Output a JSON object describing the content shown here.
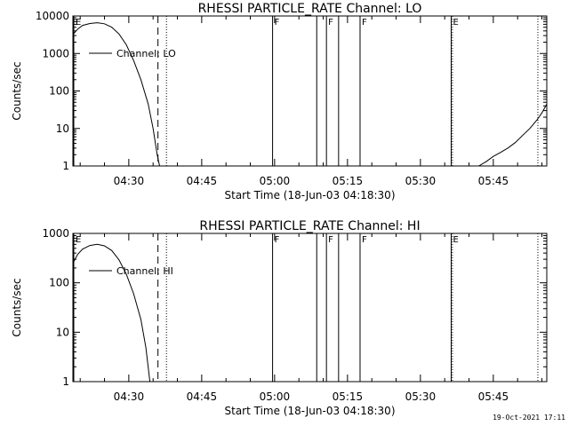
{
  "footer": {
    "timestamp": "19-Oct-2021 17:11"
  },
  "chart_data": [
    {
      "type": "line",
      "title": "RHESSI PARTICLE_RATE Channel: LO",
      "xlabel": "Start Time (18-Jun-03 04:18:30)",
      "ylabel": "Counts/sec",
      "yscale": "log",
      "xlim": [
        "04:18:30",
        "05:56:00"
      ],
      "ylim": [
        1,
        10000
      ],
      "xticks": [
        "04:30",
        "04:45",
        "05:00",
        "05:15",
        "05:30",
        "05:45"
      ],
      "yticks": [
        "1",
        "10",
        "100",
        "1000",
        "10000"
      ],
      "legend": {
        "entry": "Channel: LO",
        "placement": "top-left"
      },
      "series": [
        {
          "name": "Channel: LO",
          "points": [
            [
              "04:18:30",
              3200
            ],
            [
              "04:19:30",
              4500
            ],
            [
              "04:20:30",
              5600
            ],
            [
              "04:22:00",
              6300
            ],
            [
              "04:23:30",
              6600
            ],
            [
              "04:25:00",
              6200
            ],
            [
              "04:26:30",
              5000
            ],
            [
              "04:28:00",
              3300
            ],
            [
              "04:29:30",
              1700
            ],
            [
              "04:31:00",
              650
            ],
            [
              "04:32:30",
              200
            ],
            [
              "04:34:00",
              45
            ],
            [
              "04:35:00",
              10
            ],
            [
              "04:35:50",
              2
            ],
            [
              "04:36:20",
              1
            ]
          ]
        },
        {
          "name": "Channel: LO",
          "points": [
            [
              "05:42:00",
              1
            ],
            [
              "05:43:30",
              1.3
            ],
            [
              "05:45:00",
              1.8
            ],
            [
              "05:46:30",
              2.3
            ],
            [
              "05:48:00",
              3
            ],
            [
              "05:49:30",
              4.2
            ],
            [
              "05:51:00",
              6.5
            ],
            [
              "05:52:30",
              10
            ],
            [
              "05:54:00",
              17
            ],
            [
              "05:55:00",
              26
            ],
            [
              "05:56:00",
              45
            ]
          ]
        }
      ],
      "markers": [
        {
          "label": "E",
          "time": "04:18:30",
          "style": "solid"
        },
        {
          "label": "",
          "time": "04:36:00",
          "style": "dashed"
        },
        {
          "label": "",
          "time": "04:37:45",
          "style": "dotted"
        },
        {
          "label": "F",
          "time": "04:59:35",
          "style": "solid"
        },
        {
          "label": "",
          "time": "05:08:40",
          "style": "solid"
        },
        {
          "label": "F",
          "time": "05:10:40",
          "style": "solid"
        },
        {
          "label": "",
          "time": "05:13:10",
          "style": "solid"
        },
        {
          "label": "F",
          "time": "05:17:35",
          "style": "solid"
        },
        {
          "label": "E",
          "time": "05:36:20",
          "style": "solid"
        },
        {
          "label": "",
          "time": "05:36:35",
          "style": "dotted"
        },
        {
          "label": "",
          "time": "05:54:10",
          "style": "dotted"
        }
      ]
    },
    {
      "type": "line",
      "title": "RHESSI PARTICLE_RATE Channel: HI",
      "xlabel": "Start Time (18-Jun-03 04:18:30)",
      "ylabel": "Counts/sec",
      "yscale": "log",
      "xlim": [
        "04:18:30",
        "05:56:00"
      ],
      "ylim": [
        1,
        1000
      ],
      "xticks": [
        "04:30",
        "04:45",
        "05:00",
        "05:15",
        "05:30",
        "05:45"
      ],
      "yticks": [
        "1",
        "10",
        "100",
        "1000"
      ],
      "legend": {
        "entry": "Channel: HI",
        "placement": "top-left"
      },
      "series": [
        {
          "name": "Channel: HI",
          "points": [
            [
              "04:18:30",
              250
            ],
            [
              "04:19:30",
              380
            ],
            [
              "04:20:30",
              480
            ],
            [
              "04:22:00",
              570
            ],
            [
              "04:23:30",
              600
            ],
            [
              "04:25:00",
              560
            ],
            [
              "04:26:30",
              450
            ],
            [
              "04:28:00",
              290
            ],
            [
              "04:29:30",
              150
            ],
            [
              "04:31:00",
              60
            ],
            [
              "04:32:30",
              18
            ],
            [
              "04:33:30",
              5
            ],
            [
              "04:34:20",
              1
            ]
          ]
        }
      ],
      "markers": [
        {
          "label": "E",
          "time": "04:18:30",
          "style": "solid"
        },
        {
          "label": "",
          "time": "04:36:00",
          "style": "dashed"
        },
        {
          "label": "",
          "time": "04:37:45",
          "style": "dotted"
        },
        {
          "label": "F",
          "time": "04:59:35",
          "style": "solid"
        },
        {
          "label": "",
          "time": "05:08:40",
          "style": "solid"
        },
        {
          "label": "F",
          "time": "05:10:40",
          "style": "solid"
        },
        {
          "label": "",
          "time": "05:13:10",
          "style": "solid"
        },
        {
          "label": "F",
          "time": "05:17:35",
          "style": "solid"
        },
        {
          "label": "E",
          "time": "05:36:20",
          "style": "solid"
        },
        {
          "label": "",
          "time": "05:36:35",
          "style": "dotted"
        },
        {
          "label": "",
          "time": "05:54:10",
          "style": "dotted"
        }
      ]
    }
  ]
}
